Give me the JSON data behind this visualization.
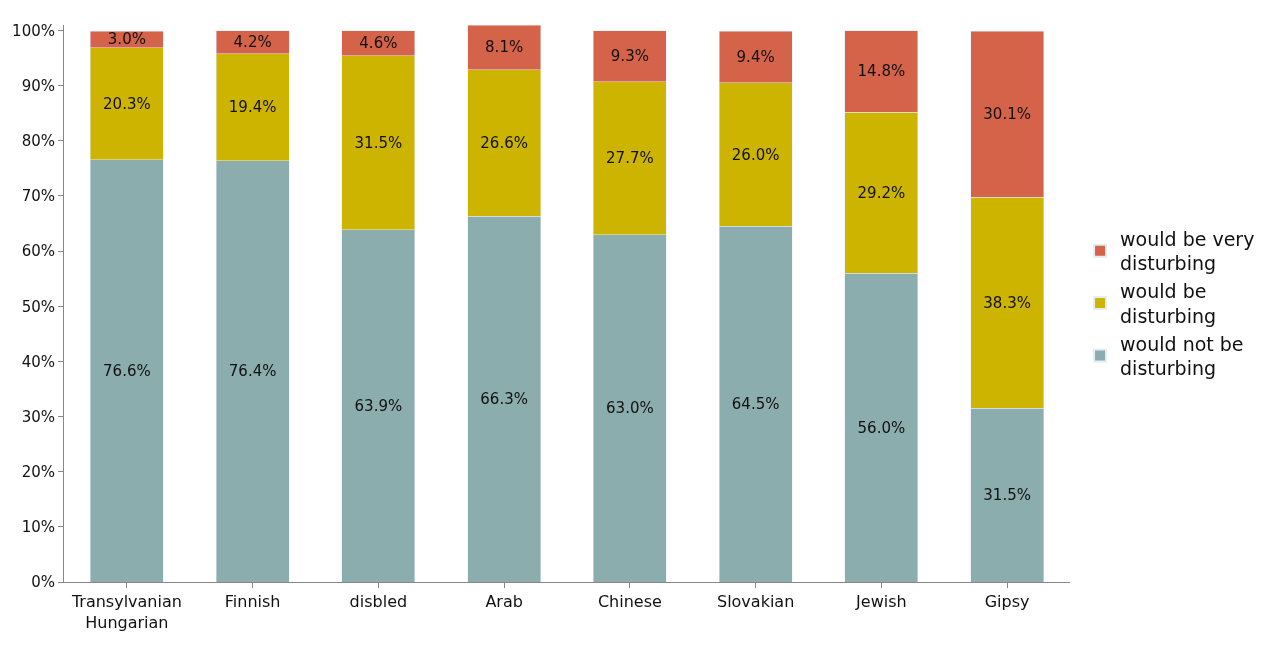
{
  "chart_data": {
    "type": "bar",
    "stacked": true,
    "categories": [
      "Transylvanian Hungarian",
      "Finnish",
      "disbled",
      "Arab",
      "Chinese",
      "Slovakian",
      "Jewish",
      "Gipsy"
    ],
    "series": [
      {
        "name": "would not be disturbing",
        "color": "#8cadad",
        "values": [
          76.6,
          76.4,
          63.9,
          66.3,
          63.0,
          64.5,
          56.0,
          31.5
        ],
        "value_labels": [
          "76.6%",
          "76.4%",
          "63.9%",
          "66.3%",
          "63.0%",
          "64.5%",
          "56.0%",
          "31.5%"
        ]
      },
      {
        "name": "would be disturbing",
        "color": "#ccb400",
        "values": [
          20.3,
          19.4,
          31.5,
          26.6,
          27.7,
          26.0,
          29.2,
          38.3
        ],
        "value_labels": [
          "20.3%",
          "19.4%",
          "31.5%",
          "26.6%",
          "27.7%",
          "26.0%",
          "29.2%",
          "38.3%"
        ]
      },
      {
        "name": "would be very disturbing",
        "color": "#d4634a",
        "values": [
          3.0,
          4.2,
          4.6,
          8.1,
          9.3,
          9.4,
          14.8,
          30.1
        ],
        "value_labels": [
          "3.0%",
          "4.2%",
          "4.6%",
          "8.1%",
          "9.3%",
          "9.4%",
          "14.8%",
          "30.1%"
        ]
      }
    ],
    "ylim": [
      0,
      101
    ],
    "yticks": [
      {
        "value": 0,
        "label": "0%"
      },
      {
        "value": 10,
        "label": "10%"
      },
      {
        "value": 20,
        "label": "20%"
      },
      {
        "value": 30,
        "label": "30%"
      },
      {
        "value": 40,
        "label": "40%"
      },
      {
        "value": 50,
        "label": "50%"
      },
      {
        "value": 60,
        "label": "60%"
      },
      {
        "value": 70,
        "label": "70%"
      },
      {
        "value": 80,
        "label": "80%"
      },
      {
        "value": 90,
        "label": "90%"
      },
      {
        "value": 100,
        "label": "100%"
      }
    ],
    "legend": "right"
  }
}
